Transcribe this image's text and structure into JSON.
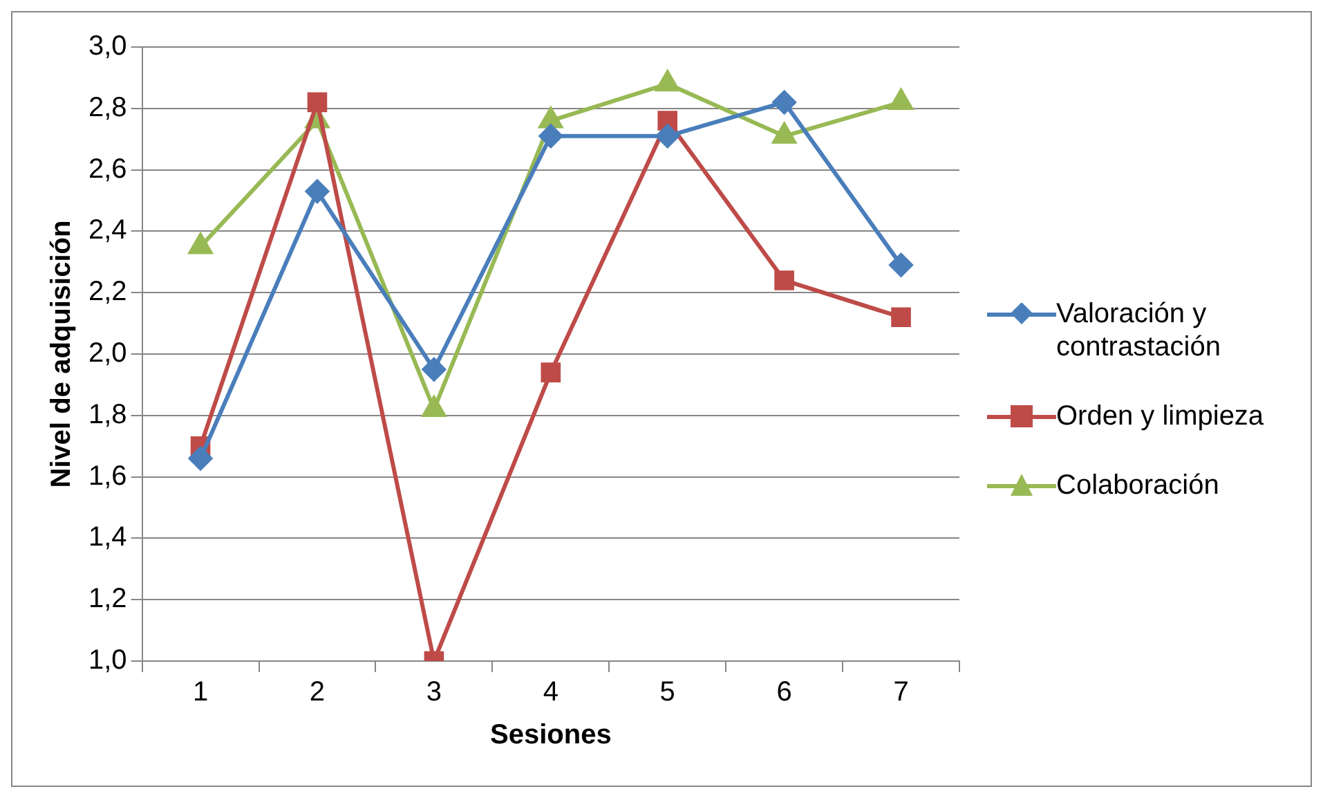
{
  "chart_data": {
    "type": "line",
    "xlabel": "Sesiones",
    "ylabel": "Nivel de adquisición",
    "categories": [
      "1",
      "2",
      "3",
      "4",
      "5",
      "6",
      "7"
    ],
    "series": [
      {
        "name": "Valoración y contrastación",
        "color": "#4a7ebb",
        "marker": "diamond",
        "values": [
          1.66,
          2.53,
          1.95,
          2.71,
          2.71,
          2.82,
          2.29
        ]
      },
      {
        "name": "Orden y limpieza",
        "color": "#be4b48",
        "marker": "square",
        "values": [
          1.7,
          2.82,
          1.0,
          1.94,
          2.76,
          2.24,
          2.12
        ]
      },
      {
        "name": "Colaboración",
        "color": "#98b954",
        "marker": "triangle",
        "values": [
          2.35,
          2.76,
          1.82,
          2.76,
          2.88,
          2.71,
          2.82
        ]
      }
    ],
    "ylim": [
      1.0,
      3.0
    ],
    "yticks": [
      {
        "value": 1.0,
        "label": "1,0"
      },
      {
        "value": 1.2,
        "label": "1,2"
      },
      {
        "value": 1.4,
        "label": "1,4"
      },
      {
        "value": 1.6,
        "label": "1,6"
      },
      {
        "value": 1.8,
        "label": "1,8"
      },
      {
        "value": 2.0,
        "label": "2,0"
      },
      {
        "value": 2.2,
        "label": "2,2"
      },
      {
        "value": 2.4,
        "label": "2,4"
      },
      {
        "value": 2.6,
        "label": "2,6"
      },
      {
        "value": 2.8,
        "label": "2,8"
      },
      {
        "value": 3.0,
        "label": "3,0"
      }
    ],
    "grid": "y",
    "legend": "right",
    "line_style": "solid"
  }
}
